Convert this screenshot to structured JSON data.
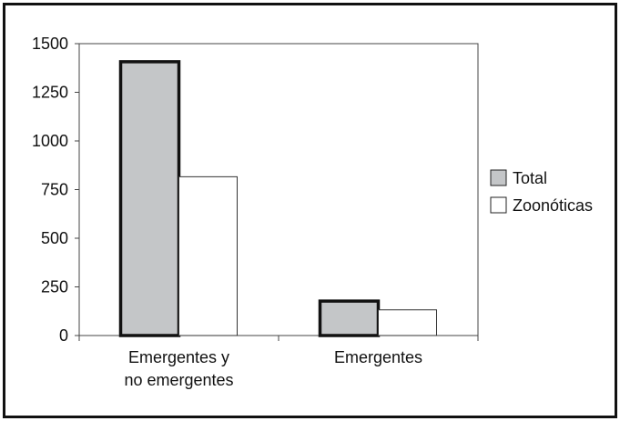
{
  "chart_data": {
    "type": "bar",
    "categories": [
      [
        "Emergentes y",
        "no emergentes"
      ],
      [
        "Emergentes"
      ]
    ],
    "series": [
      {
        "name": "Total",
        "values": [
          1407,
          177
        ],
        "color": "#c4c6c8"
      },
      {
        "name": "Zoonóticas",
        "values": [
          816,
          132
        ],
        "color": "#ffffff"
      }
    ],
    "ylim": [
      0,
      1500
    ],
    "yticks": [
      0,
      250,
      500,
      750,
      1000,
      1250,
      1500
    ],
    "grid": false,
    "legend": "right"
  }
}
